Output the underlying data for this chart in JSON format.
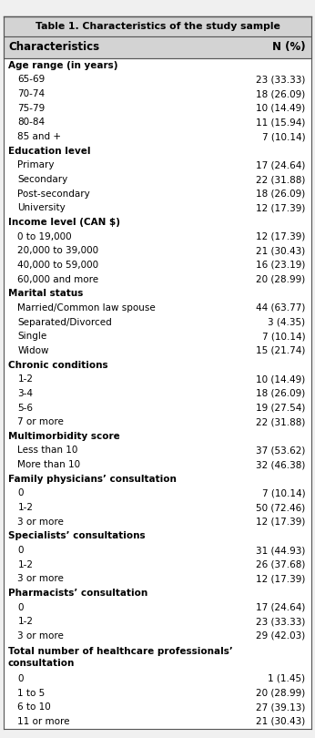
{
  "title": "Table 1. Characteristics of the study sample",
  "col1_header": "Characteristics",
  "col2_header": "N (%)",
  "rows": [
    {
      "label": "Age range (in years)",
      "value": "",
      "bold": true,
      "indent": false
    },
    {
      "label": "65-69",
      "value": "23 (33.33)",
      "bold": false,
      "indent": true
    },
    {
      "label": "70-74",
      "value": "18 (26.09)",
      "bold": false,
      "indent": true
    },
    {
      "label": "75-79",
      "value": "10 (14.49)",
      "bold": false,
      "indent": true
    },
    {
      "label": "80-84",
      "value": "11 (15.94)",
      "bold": false,
      "indent": true
    },
    {
      "label": "85 and +",
      "value": "7 (10.14)",
      "bold": false,
      "indent": true
    },
    {
      "label": "Education level",
      "value": "",
      "bold": true,
      "indent": false
    },
    {
      "label": "Primary",
      "value": "17 (24.64)",
      "bold": false,
      "indent": true
    },
    {
      "label": "Secondary",
      "value": "22 (31.88)",
      "bold": false,
      "indent": true
    },
    {
      "label": "Post-secondary",
      "value": "18 (26.09)",
      "bold": false,
      "indent": true
    },
    {
      "label": "University",
      "value": "12 (17.39)",
      "bold": false,
      "indent": true
    },
    {
      "label": "Income level (CAN $)",
      "value": "",
      "bold": true,
      "indent": false
    },
    {
      "label": "0 to 19,000",
      "value": "12 (17.39)",
      "bold": false,
      "indent": true
    },
    {
      "label": "20,000 to 39,000",
      "value": "21 (30.43)",
      "bold": false,
      "indent": true
    },
    {
      "label": "40,000 to 59,000",
      "value": "16 (23.19)",
      "bold": false,
      "indent": true
    },
    {
      "label": "60,000 and more",
      "value": "20 (28.99)",
      "bold": false,
      "indent": true
    },
    {
      "label": "Marital status",
      "value": "",
      "bold": true,
      "indent": false
    },
    {
      "label": "Married/Common law spouse",
      "value": "44 (63.77)",
      "bold": false,
      "indent": true
    },
    {
      "label": "Separated/Divorced",
      "value": "3 (4.35)",
      "bold": false,
      "indent": true
    },
    {
      "label": "Single",
      "value": "7 (10.14)",
      "bold": false,
      "indent": true
    },
    {
      "label": "Widow",
      "value": "15 (21.74)",
      "bold": false,
      "indent": true
    },
    {
      "label": "Chronic conditions",
      "value": "",
      "bold": true,
      "indent": false
    },
    {
      "label": "1-2",
      "value": "10 (14.49)",
      "bold": false,
      "indent": true
    },
    {
      "label": "3-4",
      "value": "18 (26.09)",
      "bold": false,
      "indent": true
    },
    {
      "label": "5-6",
      "value": "19 (27.54)",
      "bold": false,
      "indent": true
    },
    {
      "label": "7 or more",
      "value": "22 (31.88)",
      "bold": false,
      "indent": true
    },
    {
      "label": "Multimorbidity score",
      "value": "",
      "bold": true,
      "indent": false
    },
    {
      "label": "Less than 10",
      "value": "37 (53.62)",
      "bold": false,
      "indent": true
    },
    {
      "label": "More than 10",
      "value": "32 (46.38)",
      "bold": false,
      "indent": true
    },
    {
      "label": "Family physicians’ consultation",
      "value": "",
      "bold": true,
      "indent": false
    },
    {
      "label": "0",
      "value": "7 (10.14)",
      "bold": false,
      "indent": true
    },
    {
      "label": "1-2",
      "value": "50 (72.46)",
      "bold": false,
      "indent": true
    },
    {
      "label": "3 or more",
      "value": "12 (17.39)",
      "bold": false,
      "indent": true
    },
    {
      "label": "Specialists’ consultations",
      "value": "",
      "bold": true,
      "indent": false
    },
    {
      "label": "0",
      "value": "31 (44.93)",
      "bold": false,
      "indent": true
    },
    {
      "label": "1-2",
      "value": "26 (37.68)",
      "bold": false,
      "indent": true
    },
    {
      "label": "3 or more",
      "value": "12 (17.39)",
      "bold": false,
      "indent": true
    },
    {
      "label": "Pharmacists’ consultation",
      "value": "",
      "bold": true,
      "indent": false
    },
    {
      "label": "0",
      "value": "17 (24.64)",
      "bold": false,
      "indent": true
    },
    {
      "label": "1-2",
      "value": "23 (33.33)",
      "bold": false,
      "indent": true
    },
    {
      "label": "3 or more",
      "value": "29 (42.03)",
      "bold": false,
      "indent": true
    },
    {
      "label": "Total number of healthcare professionals’\nconsultation",
      "value": "",
      "bold": true,
      "indent": false
    },
    {
      "label": "0",
      "value": "1 (1.45)",
      "bold": false,
      "indent": true
    },
    {
      "label": "1 to 5",
      "value": "20 (28.99)",
      "bold": false,
      "indent": true
    },
    {
      "label": "6 to 10",
      "value": "27 (39.13)",
      "bold": false,
      "indent": true
    },
    {
      "label": "11 or more",
      "value": "21 (30.43)",
      "bold": false,
      "indent": true
    }
  ],
  "header_bg": "#d3d3d3",
  "title_bg": "#d3d3d3",
  "bg_color": "#f0f0f0",
  "font_size": 7.5,
  "header_font_size": 8.5,
  "title_font_size": 7.8
}
